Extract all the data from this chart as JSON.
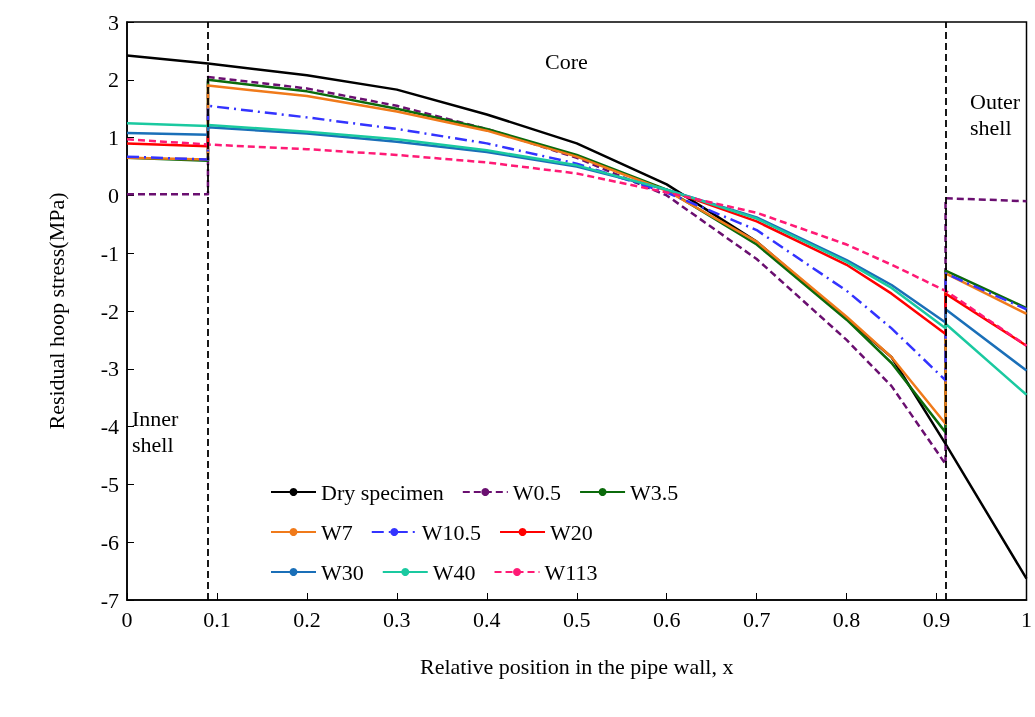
{
  "chart_data": {
    "type": "line",
    "xlabel": "Relative position in the pipe wall, x",
    "ylabel": "Residual hoop stress(MPa)",
    "xlim": [
      0,
      1
    ],
    "xticks": [
      0,
      0.1,
      0.2,
      0.3,
      0.4,
      0.5,
      0.6,
      0.7,
      0.8,
      0.9,
      1
    ],
    "ylim": [
      -7,
      3
    ],
    "yticks": [
      -7,
      -6,
      -5,
      -4,
      -3,
      -2,
      -1,
      0,
      1,
      2,
      3
    ],
    "grid": false,
    "legend": "bottom left",
    "marker": "none",
    "annotations": [
      "Core",
      "Inner shell",
      "Outer shell"
    ],
    "ref_lines": [
      {
        "axis": "x",
        "value": 0.09,
        "label": null,
        "color": "#000000",
        "line_style": "dashed"
      },
      {
        "axis": "x",
        "value": 0.91,
        "label": null,
        "color": "#000000",
        "line_style": "dashed"
      }
    ],
    "series": [
      {
        "name": "Dry specimen",
        "color": "#000000",
        "line_style": "solid",
        "x": [
          0,
          0.09,
          0.2,
          0.3,
          0.4,
          0.5,
          0.6,
          0.7,
          0.8,
          0.85,
          0.91,
          1
        ],
        "values": [
          2.42,
          2.28,
          2.08,
          1.83,
          1.4,
          0.9,
          0.19,
          -0.8,
          -2.13,
          -2.8,
          -4.3,
          -6.63
        ]
      },
      {
        "name": "W0.5",
        "color": "#6a0f70",
        "line_style": "dashed",
        "x": [
          0,
          0.09,
          0.09,
          0.2,
          0.3,
          0.4,
          0.5,
          0.6,
          0.7,
          0.8,
          0.85,
          0.91,
          0.91,
          1
        ],
        "values": [
          0.02,
          0.02,
          2.05,
          1.85,
          1.55,
          1.15,
          0.65,
          0.0,
          -1.1,
          -2.5,
          -3.3,
          -4.65,
          -0.05,
          -0.1
        ]
      },
      {
        "name": "W3.5",
        "color": "#0b6a0b",
        "line_style": "solid",
        "x": [
          0,
          0.09,
          0.09,
          0.2,
          0.3,
          0.4,
          0.5,
          0.6,
          0.7,
          0.8,
          0.85,
          0.91,
          0.91,
          1
        ],
        "values": [
          0.65,
          0.6,
          2.0,
          1.8,
          1.5,
          1.15,
          0.7,
          0.1,
          -0.85,
          -2.15,
          -2.9,
          -4.1,
          -1.3,
          -1.95
        ]
      },
      {
        "name": "W7",
        "color": "#f07a1a",
        "line_style": "solid",
        "x": [
          0,
          0.09,
          0.09,
          0.2,
          0.3,
          0.4,
          0.5,
          0.6,
          0.7,
          0.8,
          0.85,
          0.91,
          0.91,
          1
        ],
        "values": [
          0.65,
          0.62,
          1.9,
          1.72,
          1.45,
          1.12,
          0.67,
          0.08,
          -0.8,
          -2.1,
          -2.8,
          -3.95,
          -1.35,
          -2.05
        ]
      },
      {
        "name": "W10.5",
        "color": "#3333ff",
        "line_style": "dashdot",
        "x": [
          0,
          0.09,
          0.09,
          0.2,
          0.3,
          0.4,
          0.5,
          0.6,
          0.7,
          0.8,
          0.85,
          0.91,
          0.91,
          1
        ],
        "values": [
          0.67,
          0.62,
          1.55,
          1.35,
          1.15,
          0.9,
          0.55,
          0.05,
          -0.6,
          -1.65,
          -2.3,
          -3.2,
          -1.35,
          -1.97
        ]
      },
      {
        "name": "W20",
        "color": "#ff0000",
        "line_style": "solid",
        "x": [
          0,
          0.09,
          0.09,
          0.2,
          0.3,
          0.4,
          0.5,
          0.6,
          0.7,
          0.8,
          0.85,
          0.91,
          0.91,
          1
        ],
        "values": [
          0.9,
          0.85,
          1.18,
          null,
          null,
          null,
          null,
          0.1,
          -0.45,
          -1.2,
          -1.7,
          -2.4,
          -1.7,
          -2.6
        ]
      },
      {
        "name": "W30",
        "color": "#1a6fb8",
        "line_style": "solid",
        "x": [
          0,
          0.09,
          0.09,
          0.2,
          0.3,
          0.4,
          0.5,
          0.6,
          0.7,
          0.8,
          0.85,
          0.91,
          0.91,
          1
        ],
        "values": [
          1.08,
          1.05,
          1.18,
          1.07,
          0.93,
          0.75,
          0.5,
          0.1,
          -0.38,
          -1.12,
          -1.55,
          -2.2,
          -1.97,
          -3.03
        ]
      },
      {
        "name": "W40",
        "color": "#1ac9a0",
        "line_style": "solid",
        "x": [
          0,
          0.09,
          0.09,
          0.2,
          0.3,
          0.4,
          0.5,
          0.6,
          0.7,
          0.8,
          0.85,
          0.91,
          0.91,
          1
        ],
        "values": [
          1.25,
          1.2,
          1.22,
          1.1,
          0.97,
          0.78,
          0.52,
          0.1,
          -0.4,
          -1.15,
          -1.6,
          -2.3,
          -2.22,
          -3.45
        ]
      },
      {
        "name": "W113",
        "color": "#ff1a75",
        "line_style": "dashed",
        "x": [
          0,
          0.09,
          0.2,
          0.3,
          0.4,
          0.5,
          0.6,
          0.7,
          0.8,
          0.85,
          0.91,
          1
        ],
        "values": [
          0.97,
          0.88,
          0.8,
          0.7,
          0.57,
          0.38,
          0.05,
          -0.3,
          -0.85,
          -1.2,
          -1.65,
          -2.6
        ]
      }
    ]
  }
}
